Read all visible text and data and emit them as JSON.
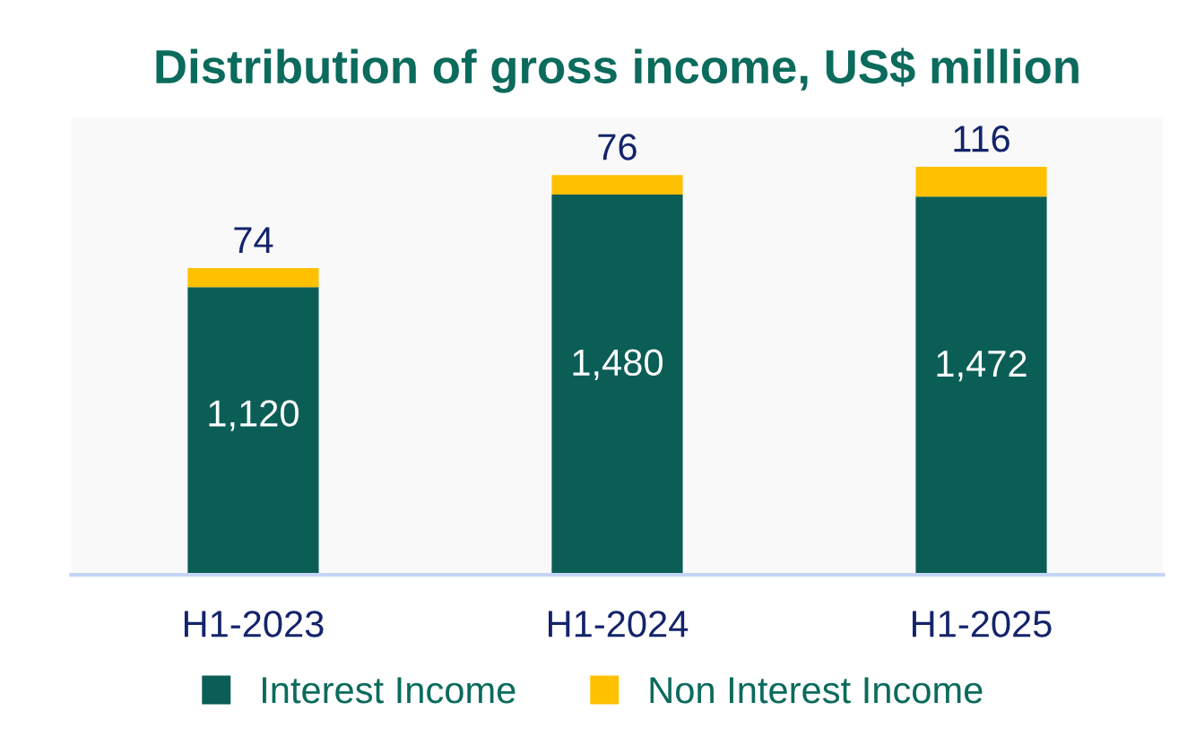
{
  "chart_data": {
    "type": "bar",
    "title": "Distribution of gross income, US$ million",
    "categories": [
      "H1-2023",
      "H1-2024",
      "H1-2025"
    ],
    "stacked": true,
    "legend": "bottom",
    "grid": false,
    "series": [
      {
        "name": "Interest Income",
        "color": "#0b5e56",
        "values": [
          1120,
          1480,
          1472
        ],
        "value_labels": [
          "1,120",
          "1,480",
          "1,472"
        ]
      },
      {
        "name": "Non Interest Income",
        "color": "#ffc000",
        "values": [
          74,
          76,
          116
        ],
        "value_labels": [
          "74",
          "76",
          "116"
        ]
      }
    ]
  }
}
